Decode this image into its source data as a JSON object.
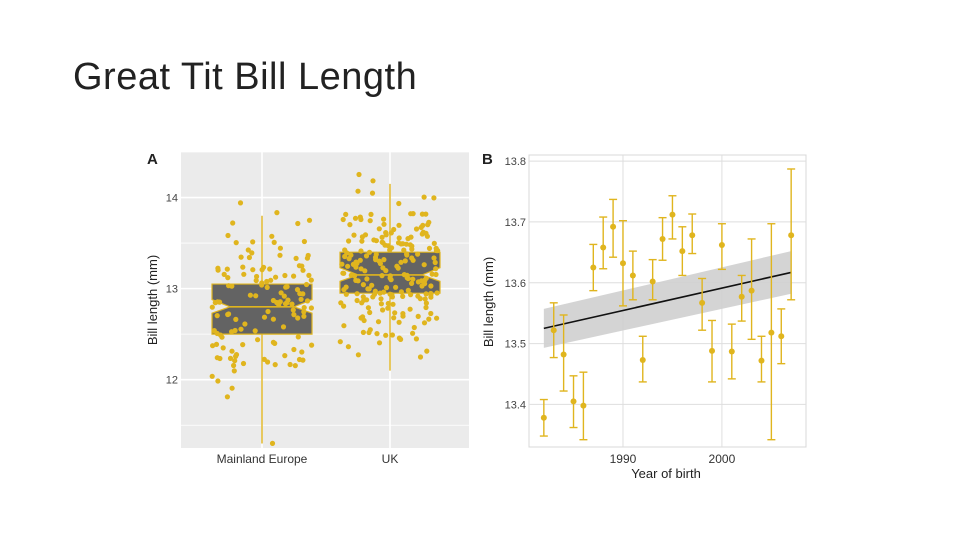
{
  "slide": {
    "title": "Great Tit Bill Length"
  },
  "colors": {
    "point": "#e0b51e",
    "box_fill": "#636363",
    "panel_bg": "#ebebeb",
    "grid": "#ffffff",
    "trend": "#111111",
    "ribbon": "#cfcfcf"
  },
  "chart_data": [
    {
      "type": "box",
      "panel_label": "A",
      "title": "",
      "xlabel": "",
      "ylabel": "Bill length (mm)",
      "ylim": [
        11.25,
        14.5
      ],
      "y_ticks": [
        "12",
        "13",
        "14"
      ],
      "categories": [
        "Mainland Europe",
        "UK"
      ],
      "boxes": [
        {
          "category": "Mainland Europe",
          "whisker_low": 11.3,
          "q1": 12.5,
          "notch_low": 12.73,
          "median": 12.8,
          "notch_high": 12.88,
          "q3": 13.05,
          "whisker_high": 13.8
        },
        {
          "category": "UK",
          "whisker_low": 12.1,
          "q1": 12.95,
          "notch_low": 13.08,
          "median": 13.15,
          "notch_high": 13.23,
          "q3": 13.4,
          "whisker_high": 14.15
        }
      ],
      "grid": true
    },
    {
      "type": "scatter",
      "panel_label": "B",
      "title": "",
      "xlabel": "Year of birth",
      "ylabel": "Bill length (mm)",
      "xlim": [
        1980.5,
        2008.5
      ],
      "ylim": [
        13.33,
        13.81
      ],
      "x_ticks": [
        "1990",
        "2000"
      ],
      "y_ticks": [
        "13.4",
        "13.5",
        "13.6",
        "13.7",
        "13.8"
      ],
      "points": [
        {
          "x": 1982,
          "y": 13.378,
          "lo": 13.348,
          "hi": 13.408
        },
        {
          "x": 1983,
          "y": 13.522,
          "lo": 13.477,
          "hi": 13.567
        },
        {
          "x": 1984,
          "y": 13.482,
          "lo": 13.422,
          "hi": 13.547
        },
        {
          "x": 1985,
          "y": 13.405,
          "lo": 13.362,
          "hi": 13.447
        },
        {
          "x": 1986,
          "y": 13.398,
          "lo": 13.342,
          "hi": 13.453
        },
        {
          "x": 1987,
          "y": 13.625,
          "lo": 13.587,
          "hi": 13.663
        },
        {
          "x": 1988,
          "y": 13.658,
          "lo": 13.623,
          "hi": 13.708
        },
        {
          "x": 1989,
          "y": 13.692,
          "lo": 13.642,
          "hi": 13.737
        },
        {
          "x": 1990,
          "y": 13.632,
          "lo": 13.562,
          "hi": 13.702
        },
        {
          "x": 1991,
          "y": 13.612,
          "lo": 13.572,
          "hi": 13.652
        },
        {
          "x": 1992,
          "y": 13.473,
          "lo": 13.437,
          "hi": 13.512
        },
        {
          "x": 1993,
          "y": 13.602,
          "lo": 13.572,
          "hi": 13.638
        },
        {
          "x": 1994,
          "y": 13.672,
          "lo": 13.637,
          "hi": 13.707
        },
        {
          "x": 1995,
          "y": 13.712,
          "lo": 13.672,
          "hi": 13.743
        },
        {
          "x": 1996,
          "y": 13.652,
          "lo": 13.612,
          "hi": 13.692
        },
        {
          "x": 1997,
          "y": 13.678,
          "lo": 13.648,
          "hi": 13.713
        },
        {
          "x": 1998,
          "y": 13.567,
          "lo": 13.522,
          "hi": 13.607
        },
        {
          "x": 1999,
          "y": 13.488,
          "lo": 13.437,
          "hi": 13.538
        },
        {
          "x": 2000,
          "y": 13.662,
          "lo": 13.622,
          "hi": 13.697
        },
        {
          "x": 2001,
          "y": 13.487,
          "lo": 13.442,
          "hi": 13.532
        },
        {
          "x": 2002,
          "y": 13.577,
          "lo": 13.537,
          "hi": 13.612
        },
        {
          "x": 2003,
          "y": 13.587,
          "lo": 13.507,
          "hi": 13.672
        },
        {
          "x": 2004,
          "y": 13.472,
          "lo": 13.437,
          "hi": 13.512
        },
        {
          "x": 2005,
          "y": 13.518,
          "lo": 13.342,
          "hi": 13.697
        },
        {
          "x": 2006,
          "y": 13.512,
          "lo": 13.467,
          "hi": 13.557
        },
        {
          "x": 2007,
          "y": 13.678,
          "lo": 13.572,
          "hi": 13.787
        }
      ],
      "trend": {
        "x": [
          1982,
          2007
        ],
        "y": [
          13.525,
          13.617
        ],
        "ci_low": [
          13.493,
          13.582
        ],
        "ci_high": [
          13.557,
          13.652
        ]
      },
      "grid": true
    }
  ]
}
